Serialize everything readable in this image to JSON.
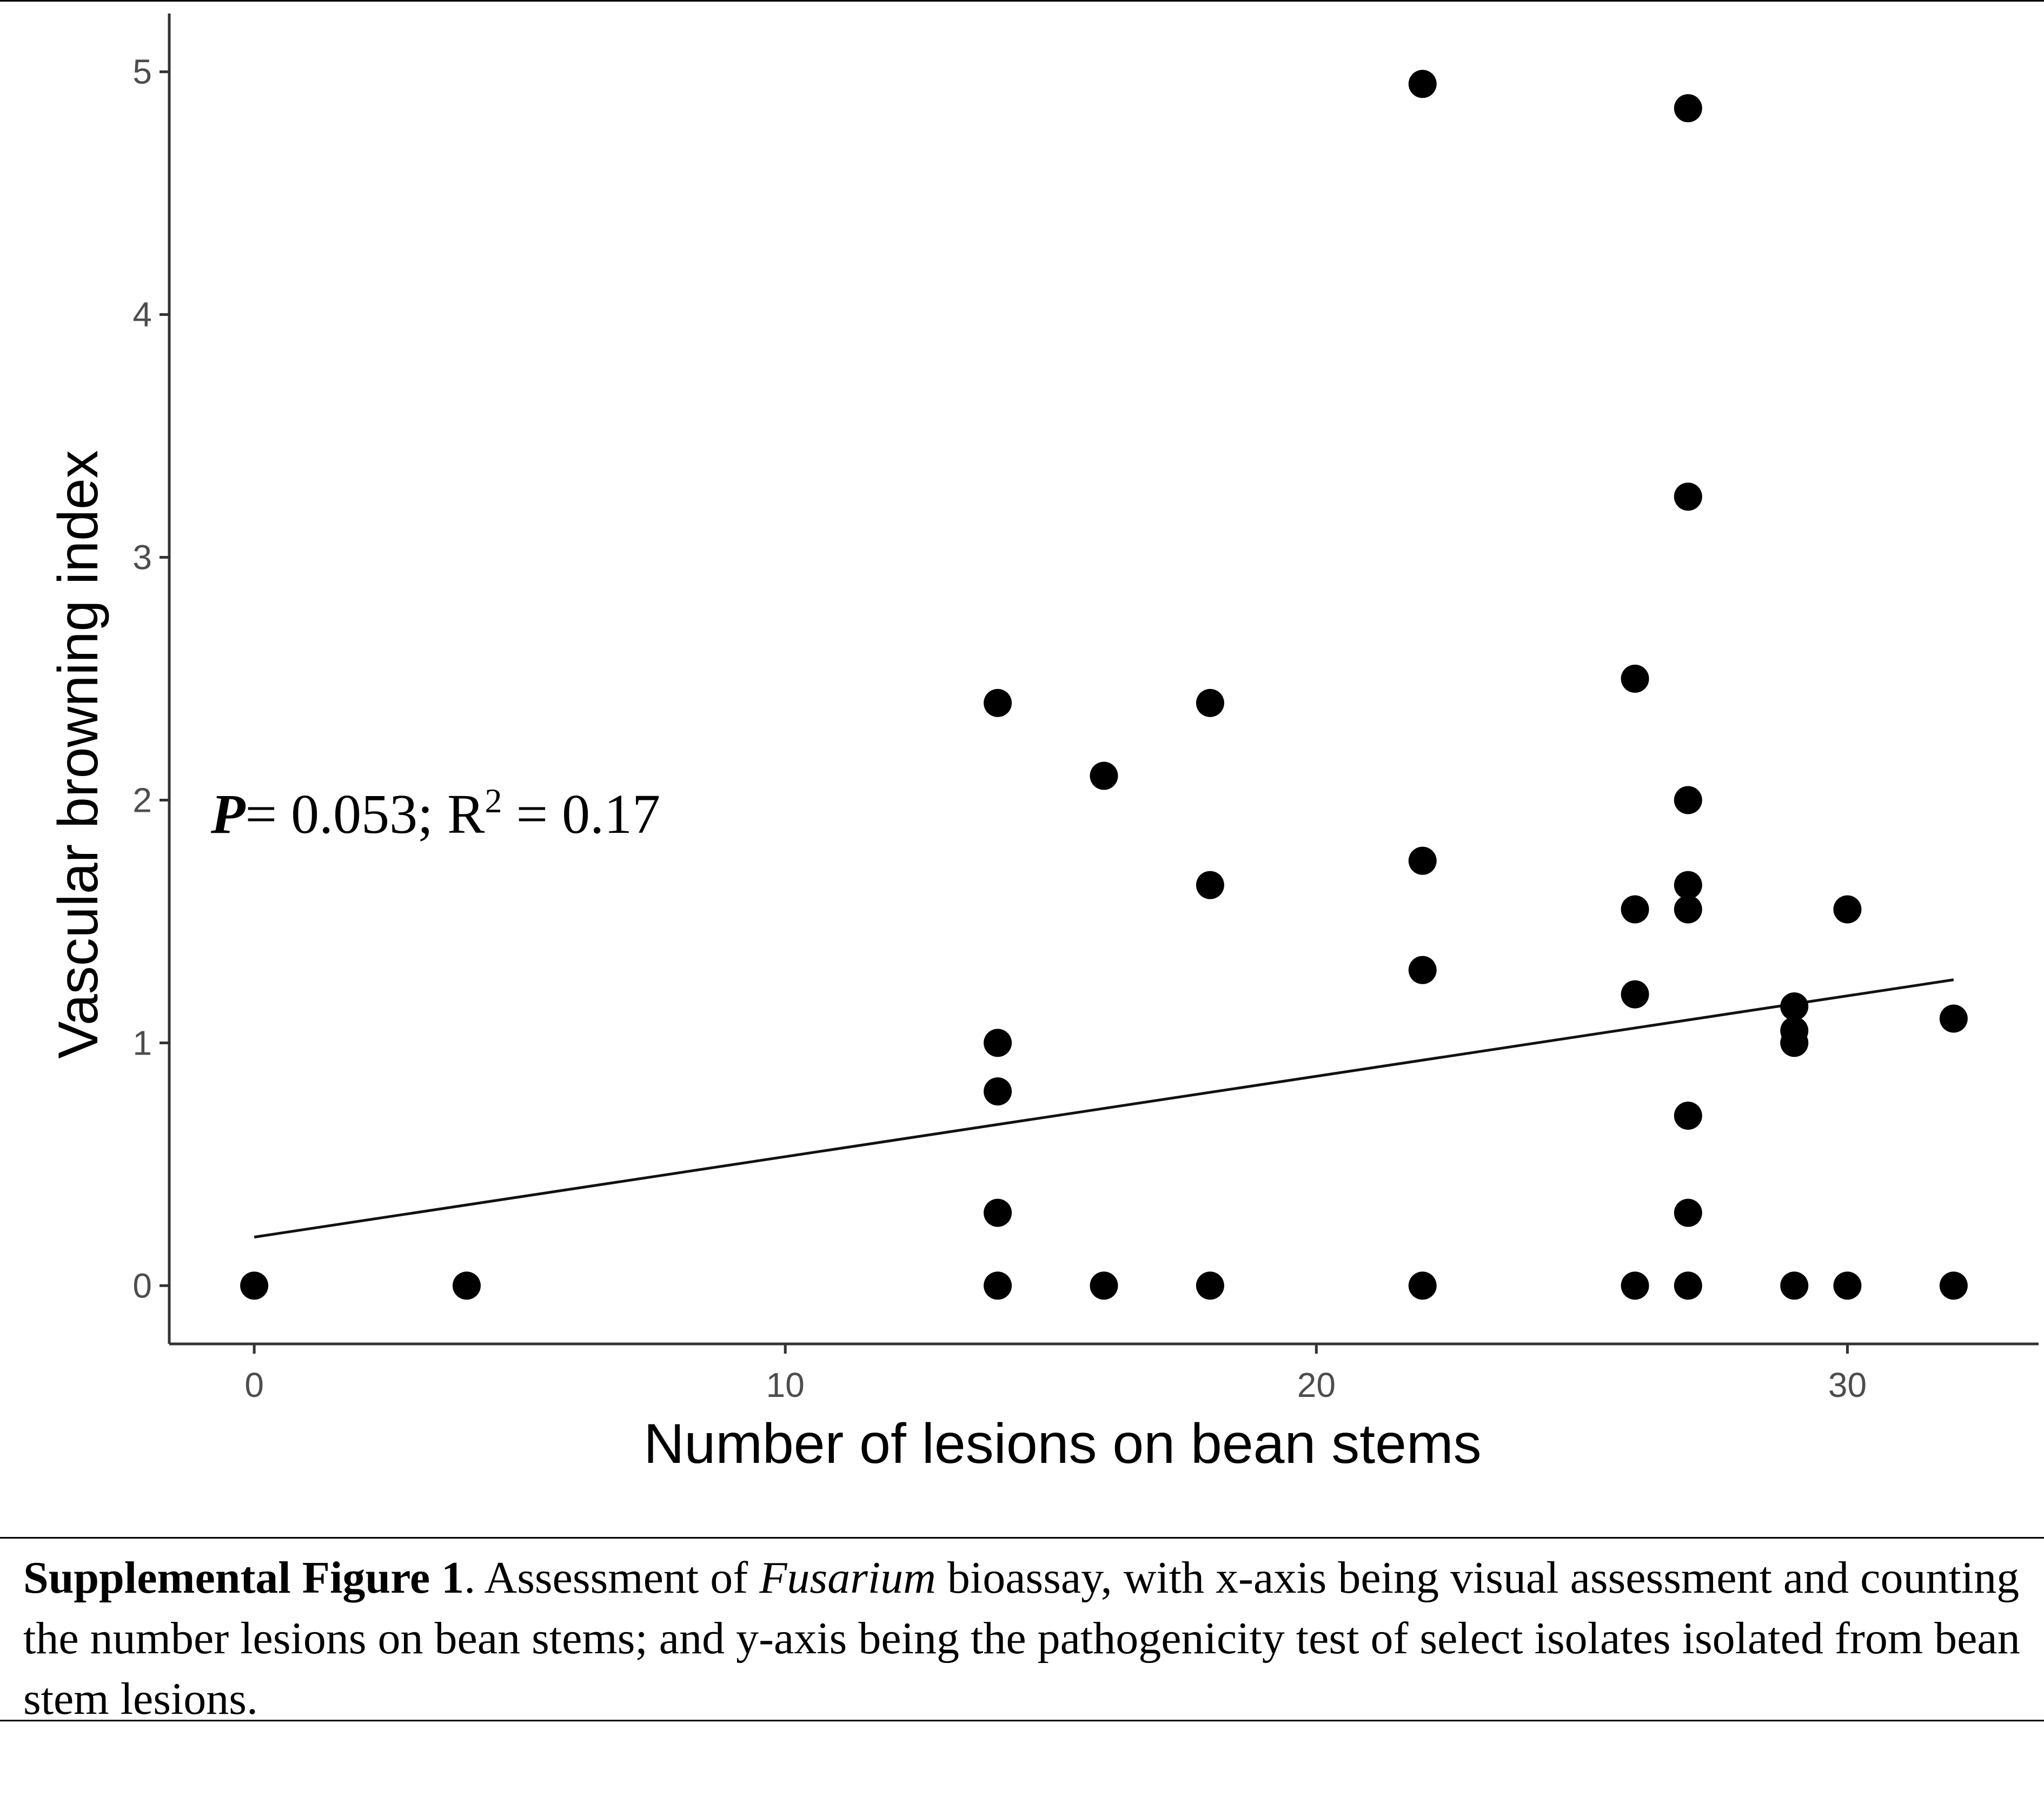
{
  "chart_data": {
    "type": "scatter",
    "xlabel": "Number of lesions on bean stems",
    "ylabel": "Vascular browning index",
    "x_ticks": [
      "0",
      "10",
      "20",
      "30"
    ],
    "y_ticks": [
      "0",
      "1",
      "2",
      "3",
      "4",
      "5"
    ],
    "xlim": [
      -1.6,
      33.6
    ],
    "ylim": [
      -0.24,
      5.24
    ],
    "grid": false,
    "legend": "none",
    "point_color": "#000000",
    "points": [
      {
        "x": 0,
        "y": 0
      },
      {
        "x": 4,
        "y": 0
      },
      {
        "x": 14,
        "y": 2.4
      },
      {
        "x": 14,
        "y": 1.0
      },
      {
        "x": 14,
        "y": 0.8
      },
      {
        "x": 14,
        "y": 0.3
      },
      {
        "x": 14,
        "y": 0
      },
      {
        "x": 16,
        "y": 2.1
      },
      {
        "x": 16,
        "y": 0
      },
      {
        "x": 18,
        "y": 2.4
      },
      {
        "x": 18,
        "y": 1.65
      },
      {
        "x": 18,
        "y": 0
      },
      {
        "x": 22,
        "y": 4.95
      },
      {
        "x": 22,
        "y": 1.75
      },
      {
        "x": 22,
        "y": 1.3
      },
      {
        "x": 22,
        "y": 0
      },
      {
        "x": 26,
        "y": 2.5
      },
      {
        "x": 26,
        "y": 1.55
      },
      {
        "x": 26,
        "y": 1.2
      },
      {
        "x": 26,
        "y": 0
      },
      {
        "x": 27,
        "y": 4.85
      },
      {
        "x": 27,
        "y": 3.25
      },
      {
        "x": 27,
        "y": 2.0
      },
      {
        "x": 27,
        "y": 1.65
      },
      {
        "x": 27,
        "y": 1.55
      },
      {
        "x": 27,
        "y": 0.7
      },
      {
        "x": 27,
        "y": 0.3
      },
      {
        "x": 27,
        "y": 0
      },
      {
        "x": 29,
        "y": 1.15
      },
      {
        "x": 29,
        "y": 1.05
      },
      {
        "x": 29,
        "y": 1.0
      },
      {
        "x": 29,
        "y": 0
      },
      {
        "x": 30,
        "y": 1.55
      },
      {
        "x": 30,
        "y": 0
      },
      {
        "x": 32,
        "y": 1.1
      },
      {
        "x": 32,
        "y": 0
      }
    ],
    "trendline": {
      "from": {
        "x": 0,
        "y": 0.2
      },
      "to": {
        "x": 32,
        "y": 1.26
      }
    },
    "annotation": {
      "p_label": "P",
      "p_text": "= 0.053; R",
      "r2_superscript": "2",
      "r2_text": " = 0.17"
    }
  },
  "caption": {
    "label": "Supplemental Figure 1",
    "text_before_italic": ". Assessment of ",
    "italic": "Fusarium",
    "text_after_italic": " bioassay, with x-axis being visual assessment and counting the number lesions on bean stems; and y-axis being the pathogenicity test of select isolates isolated from bean stem lesions."
  }
}
